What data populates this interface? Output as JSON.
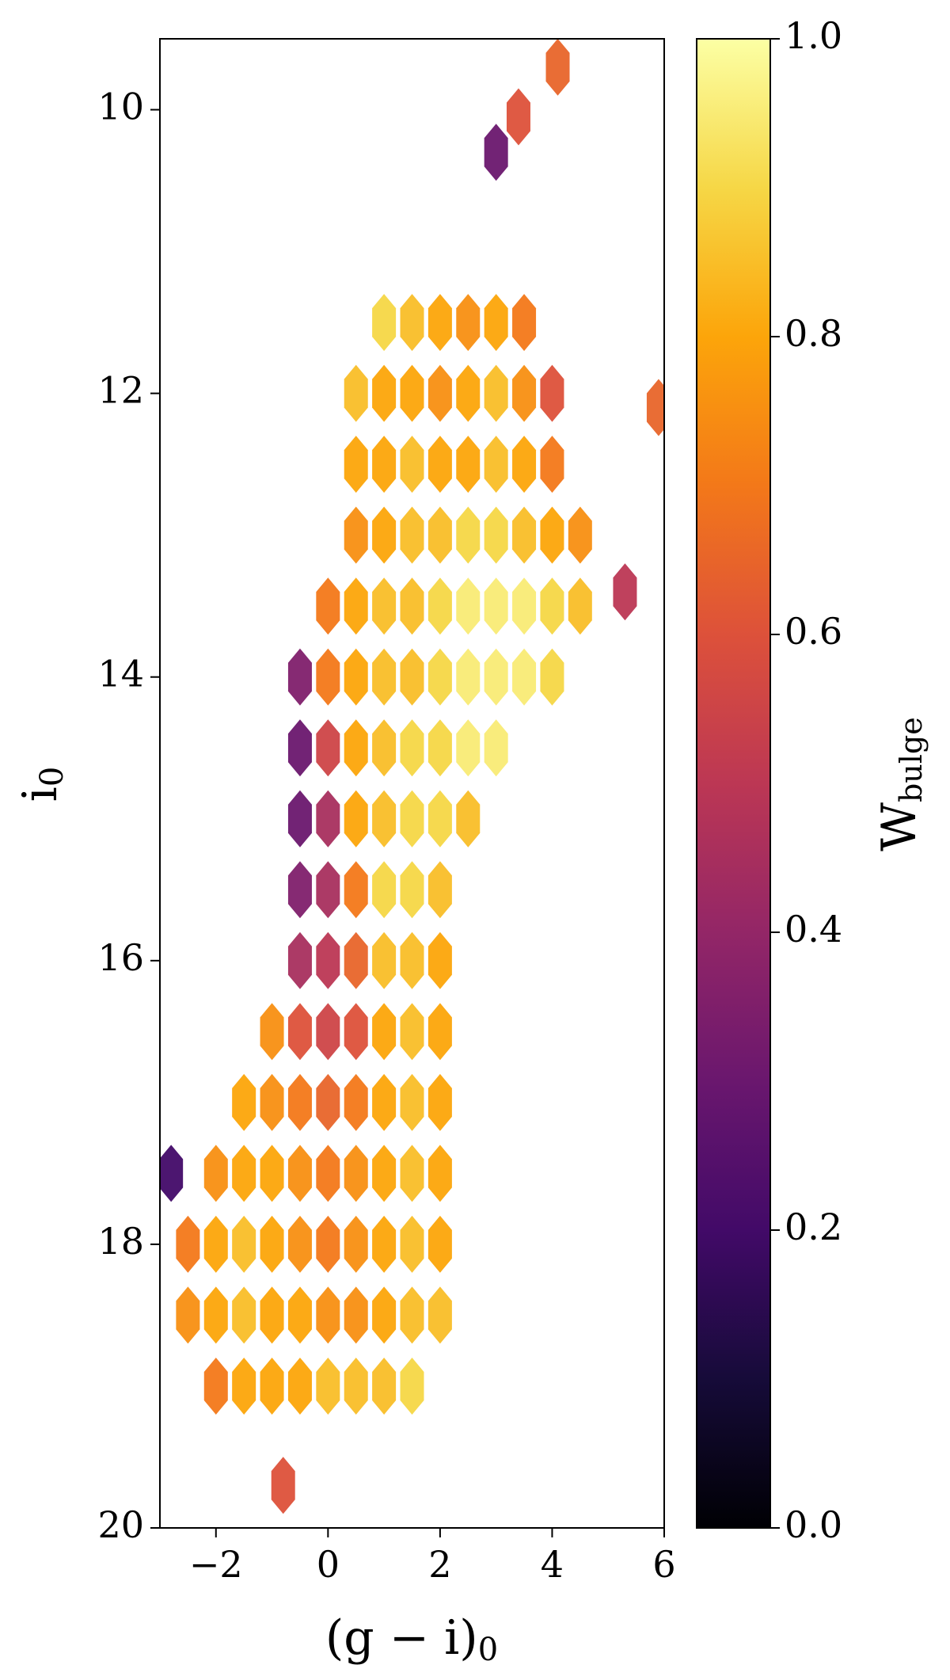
{
  "chart_data": {
    "type": "hexbin",
    "xlabel": {
      "text": "(g − i)",
      "subscript": "0"
    },
    "ylabel": {
      "text": "i",
      "subscript": "0"
    },
    "colorbar_label": {
      "text": "W",
      "subscript": "bulge"
    },
    "colormap": "inferno",
    "xlim": [
      -3,
      6
    ],
    "ylim": [
      20,
      9.5
    ],
    "clim": [
      0,
      1
    ],
    "xticks": [
      {
        "value": -2,
        "label": "−2"
      },
      0,
      2,
      4,
      6
    ],
    "yticks": [
      10,
      12,
      14,
      16,
      18,
      20
    ],
    "cticks": [
      {
        "value": 0,
        "label": "0.0"
      },
      {
        "value": 0.2,
        "label": "0.2"
      },
      {
        "value": 0.4,
        "label": "0.4"
      },
      {
        "value": 0.6,
        "label": "0.6"
      },
      {
        "value": 0.8,
        "label": "0.8"
      },
      {
        "value": 1,
        "label": "1.0"
      }
    ],
    "x": [
      1,
      1.5,
      2,
      2.5,
      3,
      3.5,
      0.5,
      1,
      1.5,
      2,
      2.5,
      3,
      3.5,
      4,
      0.5,
      1,
      1.5,
      2,
      2.5,
      3,
      3.5,
      4,
      0.5,
      1,
      1.5,
      2,
      2.5,
      3,
      3.5,
      4,
      4.5,
      0,
      0.5,
      1,
      1.5,
      2,
      2.5,
      3,
      3.5,
      4,
      4.5,
      -0.5,
      0,
      0.5,
      1,
      1.5,
      2,
      2.5,
      3,
      3.5,
      4,
      -0.5,
      0,
      0.5,
      1,
      1.5,
      2,
      2.5,
      3,
      -0.5,
      0,
      0.5,
      1,
      1.5,
      2,
      2.5,
      -0.5,
      0,
      0.5,
      1,
      1.5,
      2,
      -0.5,
      0,
      0.5,
      1,
      1.5,
      2,
      -1,
      -0.5,
      0,
      0.5,
      1,
      1.5,
      2,
      -1.5,
      -1,
      -0.5,
      0,
      0.5,
      1,
      1.5,
      2,
      -2,
      -1.5,
      -1,
      -0.5,
      0,
      0.5,
      1,
      1.5,
      2,
      -2.5,
      -2,
      -1.5,
      -1,
      -0.5,
      0,
      0.5,
      1,
      1.5,
      2,
      -2.5,
      -2,
      -1.5,
      -1,
      -0.5,
      0,
      0.5,
      1,
      1.5,
      2,
      -2,
      -1.5,
      -1,
      -0.5,
      0,
      0.5,
      1,
      1.5,
      4.1,
      3,
      3.4,
      -2.8,
      -0.8,
      5.9,
      5.3
    ],
    "y": [
      11.5,
      11.5,
      11.5,
      11.5,
      11.5,
      11.5,
      12,
      12,
      12,
      12,
      12,
      12,
      12,
      12,
      12.5,
      12.5,
      12.5,
      12.5,
      12.5,
      12.5,
      12.5,
      12.5,
      13,
      13,
      13,
      13,
      13,
      13,
      13,
      13,
      13,
      13.5,
      13.5,
      13.5,
      13.5,
      13.5,
      13.5,
      13.5,
      13.5,
      13.5,
      13.5,
      14,
      14,
      14,
      14,
      14,
      14,
      14,
      14,
      14,
      14,
      14.5,
      14.5,
      14.5,
      14.5,
      14.5,
      14.5,
      14.5,
      14.5,
      15,
      15,
      15,
      15,
      15,
      15,
      15,
      15.5,
      15.5,
      15.5,
      15.5,
      15.5,
      15.5,
      16,
      16,
      16,
      16,
      16,
      16,
      16.5,
      16.5,
      16.5,
      16.5,
      16.5,
      16.5,
      16.5,
      17,
      17,
      17,
      17,
      17,
      17,
      17,
      17,
      17.5,
      17.5,
      17.5,
      17.5,
      17.5,
      17.5,
      17.5,
      17.5,
      17.5,
      18,
      18,
      18,
      18,
      18,
      18,
      18,
      18,
      18,
      18,
      18.5,
      18.5,
      18.5,
      18.5,
      18.5,
      18.5,
      18.5,
      18.5,
      18.5,
      18.5,
      19,
      19,
      19,
      19,
      19,
      19,
      19,
      19,
      9.7,
      10.3,
      10.05,
      17.5,
      19.7,
      12.1,
      13.4
    ],
    "c": [
      0.9,
      0.85,
      0.8,
      0.75,
      0.8,
      0.7,
      0.85,
      0.8,
      0.8,
      0.75,
      0.8,
      0.85,
      0.75,
      0.6,
      0.8,
      0.8,
      0.85,
      0.8,
      0.8,
      0.85,
      0.8,
      0.7,
      0.75,
      0.8,
      0.85,
      0.85,
      0.9,
      0.9,
      0.85,
      0.8,
      0.75,
      0.7,
      0.8,
      0.85,
      0.85,
      0.9,
      0.95,
      0.95,
      0.95,
      0.9,
      0.85,
      0.35,
      0.7,
      0.8,
      0.85,
      0.85,
      0.9,
      0.95,
      0.95,
      0.95,
      0.9,
      0.3,
      0.55,
      0.8,
      0.85,
      0.9,
      0.9,
      0.95,
      0.95,
      0.3,
      0.45,
      0.8,
      0.85,
      0.9,
      0.9,
      0.85,
      0.35,
      0.45,
      0.7,
      0.9,
      0.9,
      0.85,
      0.45,
      0.5,
      0.65,
      0.85,
      0.85,
      0.8,
      0.75,
      0.6,
      0.55,
      0.6,
      0.8,
      0.85,
      0.8,
      0.8,
      0.75,
      0.7,
      0.65,
      0.7,
      0.8,
      0.85,
      0.8,
      0.75,
      0.8,
      0.8,
      0.75,
      0.7,
      0.75,
      0.8,
      0.85,
      0.8,
      0.7,
      0.8,
      0.85,
      0.8,
      0.75,
      0.7,
      0.75,
      0.8,
      0.85,
      0.8,
      0.75,
      0.8,
      0.85,
      0.8,
      0.8,
      0.75,
      0.75,
      0.8,
      0.85,
      0.85,
      0.7,
      0.8,
      0.8,
      0.8,
      0.85,
      0.85,
      0.85,
      0.9,
      0.65,
      0.3,
      0.6,
      0.2,
      0.6,
      0.65,
      0.5
    ]
  }
}
